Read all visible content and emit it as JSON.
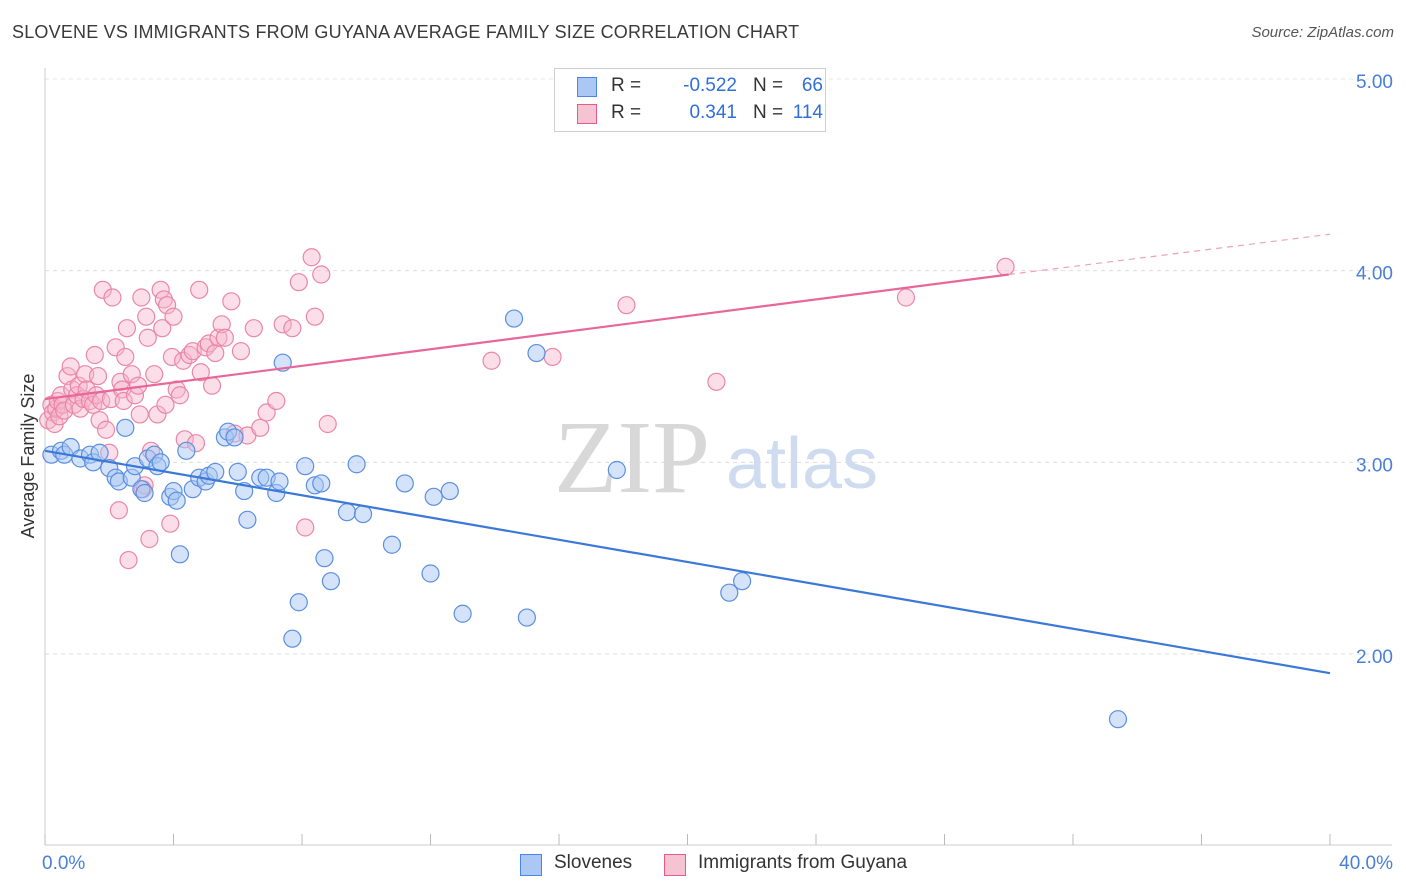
{
  "title": "SLOVENE VS IMMIGRANTS FROM GUYANA AVERAGE FAMILY SIZE CORRELATION CHART",
  "source": "Source: ZipAtlas.com",
  "watermark": {
    "zip": "ZIP",
    "atlas": "atlas"
  },
  "colors": {
    "blue": "#4a86e8",
    "blue_fill": "#aac8f3",
    "pink": "#e85a8a",
    "pink_fill": "#f6b6cb",
    "tick": "#4a7fd6"
  },
  "legend": {
    "rows": [
      {
        "r_label": "R =",
        "r_value": "-0.522",
        "n_label": "N =",
        "n_value": "66"
      },
      {
        "r_label": "R =",
        "r_value": "0.341",
        "n_label": "N =",
        "n_value": "114"
      }
    ]
  },
  "bottom_legend": [
    "Slovenes",
    "Immigrants from Guyana"
  ],
  "chart_data": {
    "type": "scatter",
    "xlabel": "",
    "ylabel": "Average Family Size",
    "xlim": [
      0,
      40
    ],
    "ylim": [
      1.2,
      5.1
    ],
    "x_tick_labels": [
      "0.0%",
      "40.0%"
    ],
    "y_ticks": [
      2.0,
      3.0,
      4.0,
      5.0
    ],
    "y_tick_labels": [
      "2.00",
      "3.00",
      "4.00",
      "5.00"
    ],
    "grid": "horizontal dashed",
    "series": [
      {
        "name": "Slovenes",
        "color": "#4a86e8",
        "trend": {
          "x": [
            0,
            40
          ],
          "y": [
            3.06,
            1.9
          ]
        },
        "points": [
          [
            0.2,
            3.04
          ],
          [
            0.5,
            3.06
          ],
          [
            0.6,
            3.04
          ],
          [
            0.8,
            3.08
          ],
          [
            1.1,
            3.02
          ],
          [
            1.4,
            3.04
          ],
          [
            1.5,
            3.0
          ],
          [
            1.7,
            3.05
          ],
          [
            2.0,
            2.97
          ],
          [
            2.2,
            2.92
          ],
          [
            2.3,
            2.9
          ],
          [
            2.5,
            3.18
          ],
          [
            2.7,
            2.92
          ],
          [
            2.8,
            2.98
          ],
          [
            3.0,
            2.86
          ],
          [
            3.1,
            2.84
          ],
          [
            3.2,
            3.02
          ],
          [
            3.4,
            3.04
          ],
          [
            3.5,
            2.98
          ],
          [
            3.6,
            3.0
          ],
          [
            3.9,
            2.82
          ],
          [
            4.0,
            2.85
          ],
          [
            4.1,
            2.8
          ],
          [
            4.2,
            2.52
          ],
          [
            4.4,
            3.06
          ],
          [
            4.6,
            2.86
          ],
          [
            4.8,
            2.92
          ],
          [
            5.0,
            2.9
          ],
          [
            5.1,
            2.93
          ],
          [
            5.3,
            2.95
          ],
          [
            5.6,
            3.13
          ],
          [
            5.7,
            3.16
          ],
          [
            5.9,
            3.13
          ],
          [
            6.0,
            2.95
          ],
          [
            6.2,
            2.85
          ],
          [
            6.3,
            2.7
          ],
          [
            6.7,
            2.92
          ],
          [
            6.9,
            2.92
          ],
          [
            7.2,
            2.84
          ],
          [
            7.3,
            2.9
          ],
          [
            7.4,
            3.52
          ],
          [
            7.7,
            2.08
          ],
          [
            7.9,
            2.27
          ],
          [
            8.1,
            2.98
          ],
          [
            8.4,
            2.88
          ],
          [
            8.6,
            2.89
          ],
          [
            8.7,
            2.5
          ],
          [
            8.9,
            2.38
          ],
          [
            9.4,
            2.74
          ],
          [
            9.7,
            2.99
          ],
          [
            9.9,
            2.73
          ],
          [
            10.8,
            2.57
          ],
          [
            11.2,
            2.89
          ],
          [
            12.0,
            2.42
          ],
          [
            12.1,
            2.82
          ],
          [
            12.6,
            2.85
          ],
          [
            13.0,
            2.21
          ],
          [
            14.6,
            3.75
          ],
          [
            15.0,
            2.19
          ],
          [
            15.3,
            3.57
          ],
          [
            17.8,
            2.96
          ],
          [
            21.3,
            2.32
          ],
          [
            21.7,
            2.38
          ],
          [
            33.4,
            1.66
          ]
        ]
      },
      {
        "name": "Immigrants from Guyana",
        "color": "#e85a8a",
        "trend": {
          "x": [
            0,
            30
          ],
          "y": [
            3.33,
            3.98
          ]
        },
        "trend_dashed": {
          "x": [
            30,
            40
          ],
          "y": [
            3.98,
            4.19
          ]
        },
        "points": [
          [
            0.1,
            3.22
          ],
          [
            0.2,
            3.3
          ],
          [
            0.25,
            3.26
          ],
          [
            0.3,
            3.2
          ],
          [
            0.35,
            3.28
          ],
          [
            0.4,
            3.32
          ],
          [
            0.45,
            3.24
          ],
          [
            0.5,
            3.35
          ],
          [
            0.55,
            3.3
          ],
          [
            0.6,
            3.27
          ],
          [
            0.7,
            3.45
          ],
          [
            0.8,
            3.5
          ],
          [
            0.85,
            3.38
          ],
          [
            0.9,
            3.3
          ],
          [
            1.0,
            3.35
          ],
          [
            1.05,
            3.4
          ],
          [
            1.1,
            3.28
          ],
          [
            1.2,
            3.33
          ],
          [
            1.25,
            3.46
          ],
          [
            1.3,
            3.38
          ],
          [
            1.4,
            3.32
          ],
          [
            1.5,
            3.3
          ],
          [
            1.55,
            3.56
          ],
          [
            1.6,
            3.35
          ],
          [
            1.65,
            3.45
          ],
          [
            1.7,
            3.22
          ],
          [
            1.75,
            3.32
          ],
          [
            1.8,
            3.9
          ],
          [
            1.9,
            3.17
          ],
          [
            2.0,
            3.05
          ],
          [
            2.05,
            3.33
          ],
          [
            2.1,
            3.86
          ],
          [
            2.2,
            3.6
          ],
          [
            2.3,
            2.75
          ],
          [
            2.35,
            3.42
          ],
          [
            2.4,
            3.38
          ],
          [
            2.45,
            3.32
          ],
          [
            2.5,
            3.55
          ],
          [
            2.55,
            3.7
          ],
          [
            2.6,
            2.49
          ],
          [
            2.7,
            3.46
          ],
          [
            2.8,
            3.35
          ],
          [
            2.9,
            3.4
          ],
          [
            2.95,
            3.25
          ],
          [
            3.0,
            3.86
          ],
          [
            3.05,
            2.86
          ],
          [
            3.1,
            2.88
          ],
          [
            3.15,
            3.76
          ],
          [
            3.2,
            3.65
          ],
          [
            3.25,
            2.6
          ],
          [
            3.3,
            3.06
          ],
          [
            3.4,
            3.46
          ],
          [
            3.5,
            3.25
          ],
          [
            3.6,
            3.9
          ],
          [
            3.65,
            3.7
          ],
          [
            3.7,
            3.85
          ],
          [
            3.75,
            3.3
          ],
          [
            3.8,
            3.82
          ],
          [
            3.9,
            2.68
          ],
          [
            3.95,
            3.55
          ],
          [
            4.0,
            3.76
          ],
          [
            4.1,
            3.38
          ],
          [
            4.2,
            3.35
          ],
          [
            4.3,
            3.53
          ],
          [
            4.35,
            3.12
          ],
          [
            4.5,
            3.56
          ],
          [
            4.6,
            3.58
          ],
          [
            4.7,
            3.1
          ],
          [
            4.8,
            3.9
          ],
          [
            4.85,
            3.47
          ],
          [
            5.0,
            3.6
          ],
          [
            5.1,
            3.62
          ],
          [
            5.2,
            3.4
          ],
          [
            5.3,
            3.57
          ],
          [
            5.4,
            3.65
          ],
          [
            5.5,
            3.72
          ],
          [
            5.6,
            3.65
          ],
          [
            5.8,
            3.84
          ],
          [
            5.9,
            3.15
          ],
          [
            6.1,
            3.58
          ],
          [
            6.3,
            3.14
          ],
          [
            6.5,
            3.7
          ],
          [
            6.7,
            3.18
          ],
          [
            6.9,
            3.26
          ],
          [
            7.2,
            3.32
          ],
          [
            7.4,
            3.72
          ],
          [
            7.7,
            3.7
          ],
          [
            7.9,
            3.94
          ],
          [
            8.1,
            2.66
          ],
          [
            8.3,
            4.07
          ],
          [
            8.4,
            3.76
          ],
          [
            8.6,
            3.98
          ],
          [
            8.8,
            3.2
          ],
          [
            13.9,
            3.53
          ],
          [
            15.8,
            3.55
          ],
          [
            18.1,
            3.82
          ],
          [
            20.9,
            3.42
          ],
          [
            26.8,
            3.86
          ],
          [
            29.9,
            4.02
          ]
        ]
      }
    ]
  }
}
